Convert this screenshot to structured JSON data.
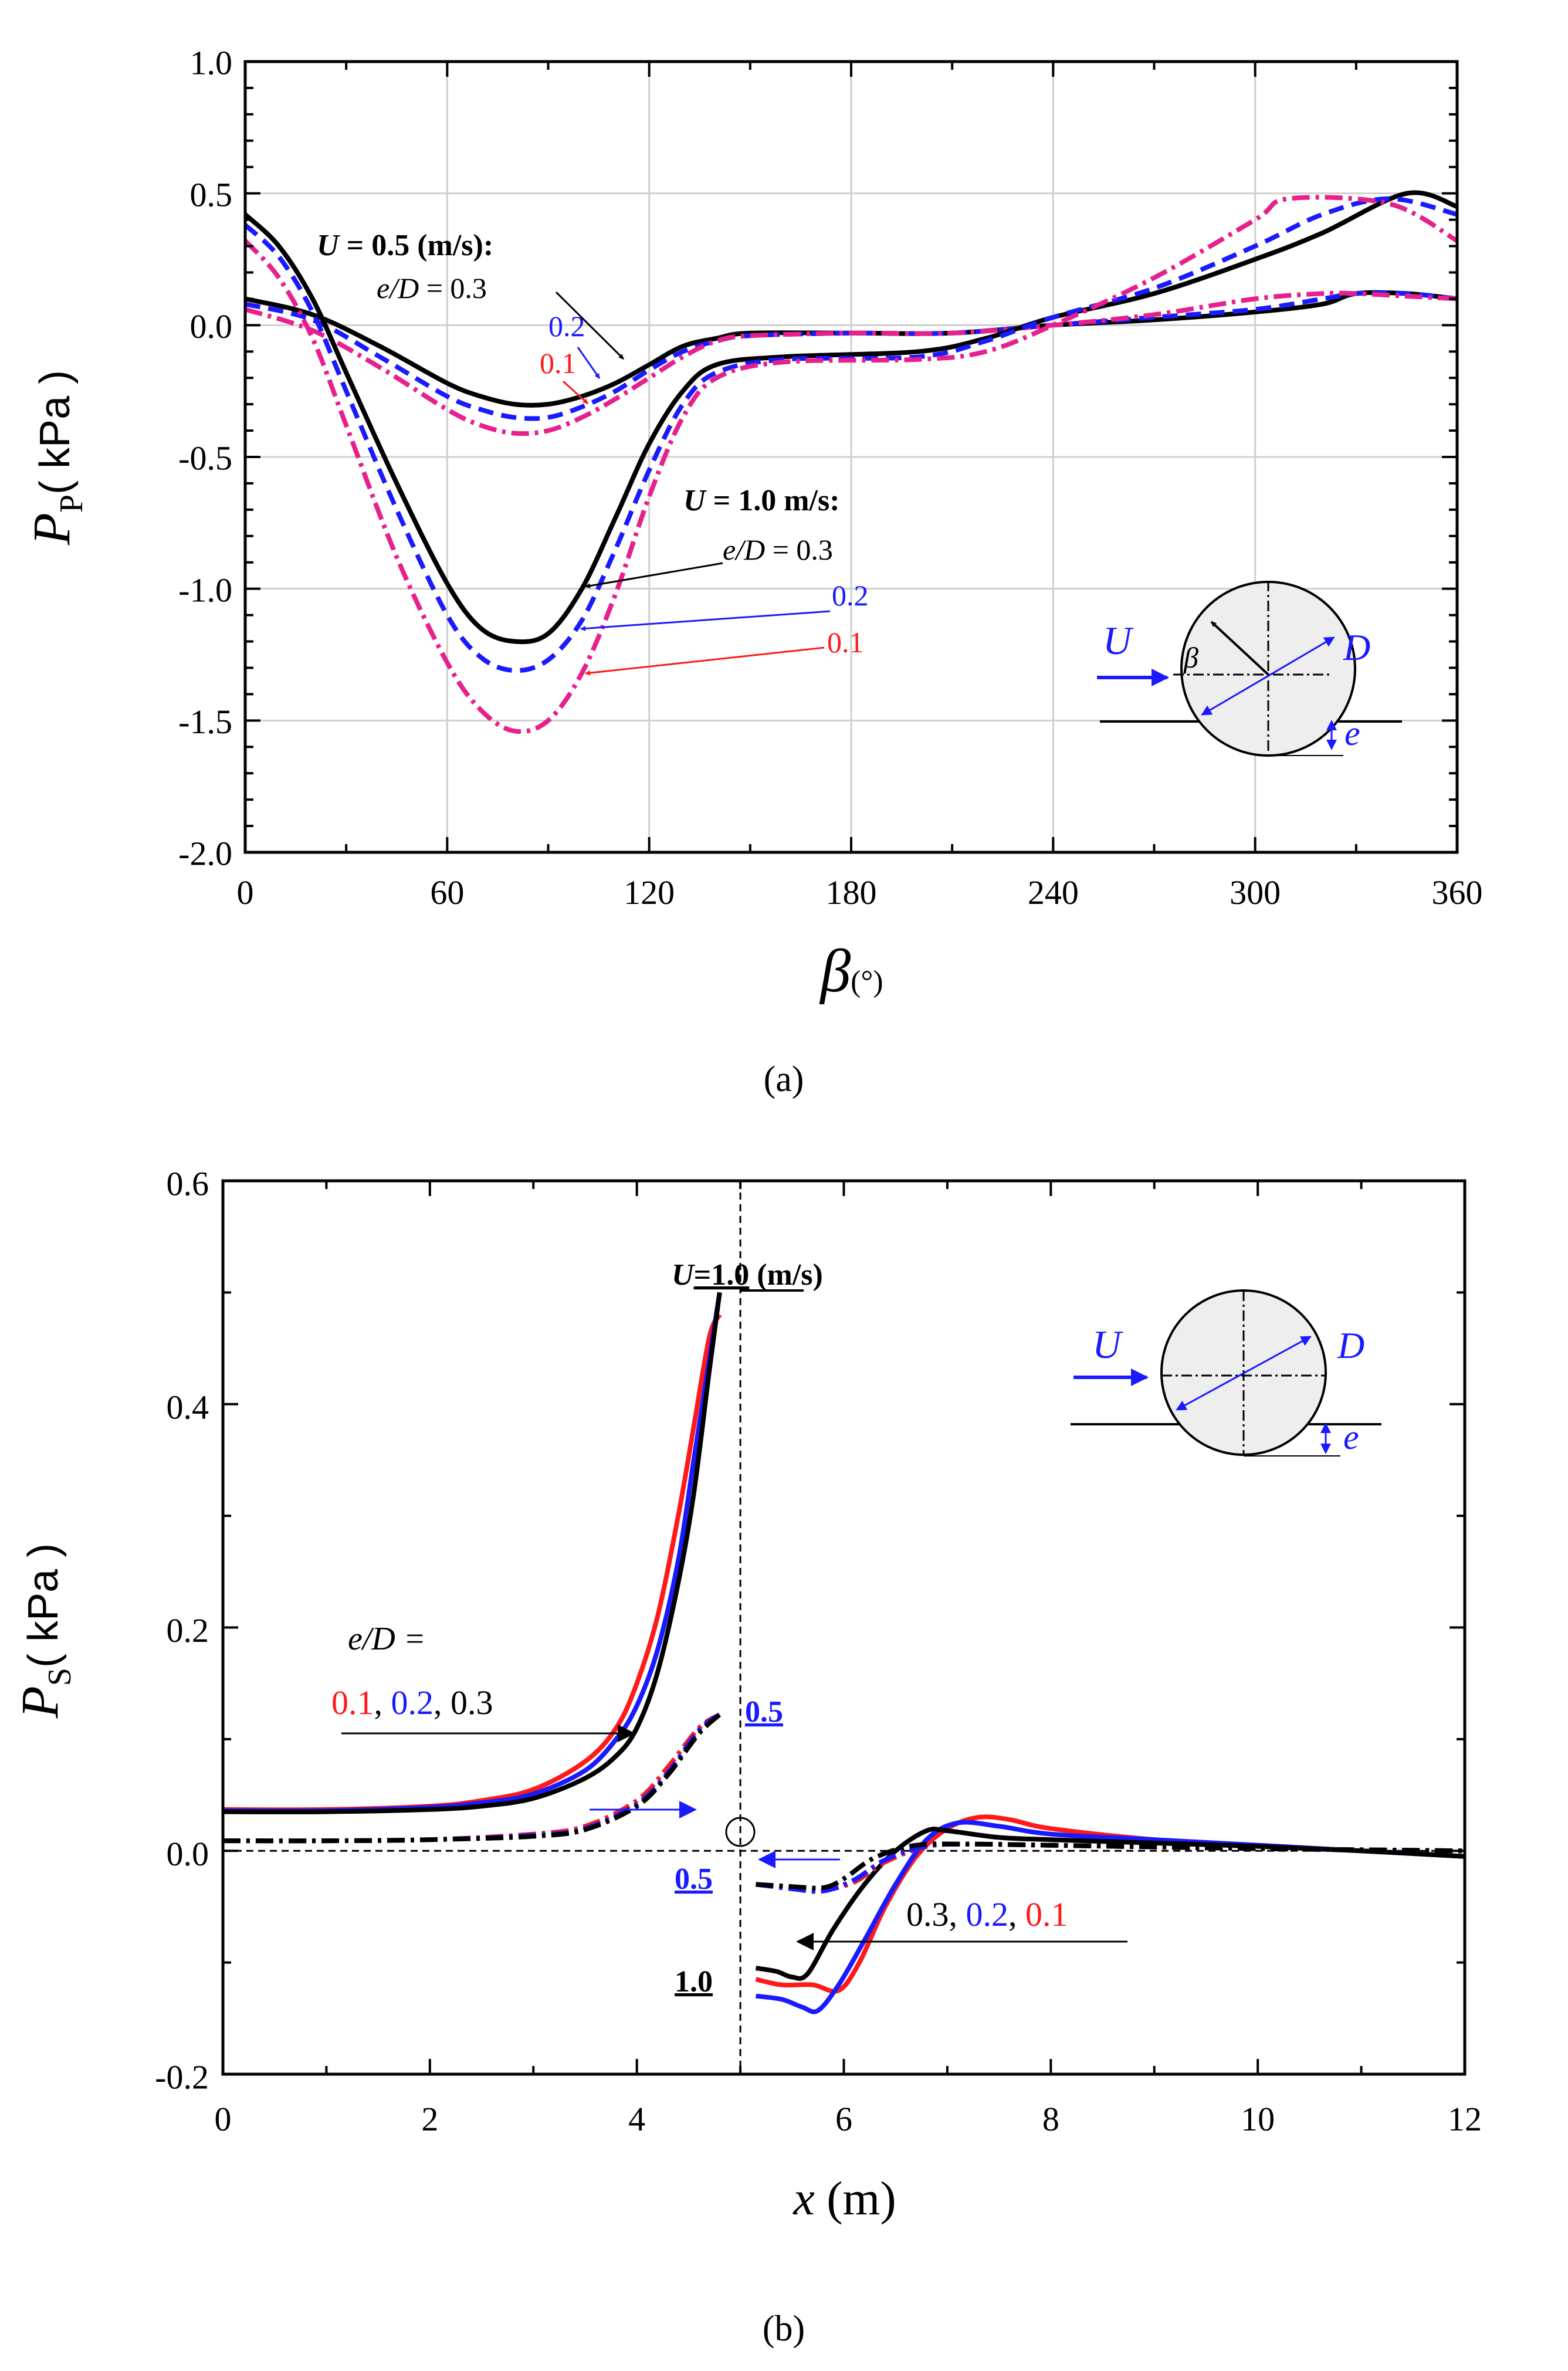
{
  "colors": {
    "black": "#000000",
    "blue": "#1a1aff",
    "red": "#ff1a1a",
    "magenta": "#e6208c",
    "grid": "#d0d0d0",
    "body": "#eeeeee"
  },
  "chart_data": [
    {
      "type": "line",
      "caption": "(a)",
      "xlabel_symbol": "β",
      "xlabel_unit": "(°)",
      "ylabel_symbol": "P",
      "ylabel_sub": "P",
      "ylabel_unit": "( kPa )",
      "xlim": [
        0,
        360
      ],
      "ylim": [
        -2.0,
        1.0
      ],
      "xticks": [
        0,
        60,
        120,
        180,
        240,
        300,
        360
      ],
      "xtick_labels": [
        "0",
        "60",
        "120",
        "180",
        "240",
        "300",
        "360"
      ],
      "yticks": [
        1.0,
        0.5,
        0.0,
        -0.5,
        -1.0,
        -1.5,
        -2.0
      ],
      "ytick_labels": [
        "1.0",
        "0.5",
        "0.0",
        "-0.5",
        "-1.0",
        "-1.5",
        "-2.0"
      ],
      "grid": true,
      "annotations": {
        "u05_title_U": "U",
        "u05_title_rest": " = 0.5 (m/s):",
        "u05_ed_var": "e/D",
        "u05_ed_val": " = 0.3",
        "u05_v02": "0.2",
        "u05_v01": "0.1",
        "u10_title_U": "U",
        "u10_title_rest": " = 1.0 m/s:",
        "u10_ed_var": "e/D",
        "u10_ed_val": " = 0.3",
        "u10_v02": "0.2",
        "u10_v01": "0.1",
        "inset_U": "U",
        "inset_beta": "β",
        "inset_D": "D",
        "inset_e": "e"
      },
      "series": [
        {
          "name": "U=0.5, e/D=0.3",
          "style": "solid",
          "color": "black",
          "x": [
            0,
            20,
            40,
            60,
            70,
            80,
            90,
            100,
            110,
            120,
            130,
            140,
            150,
            180,
            210,
            240,
            270,
            300,
            320,
            330,
            345,
            360
          ],
          "y": [
            0.1,
            0.04,
            -0.08,
            -0.22,
            -0.27,
            -0.3,
            -0.3,
            -0.27,
            -0.22,
            -0.15,
            -0.08,
            -0.05,
            -0.03,
            -0.03,
            -0.03,
            0.0,
            0.02,
            0.05,
            0.08,
            0.12,
            0.12,
            0.1
          ]
        },
        {
          "name": "U=0.5, e/D=0.2",
          "style": "dashed",
          "color": "blue",
          "x": [
            0,
            20,
            40,
            60,
            70,
            80,
            90,
            100,
            110,
            120,
            130,
            140,
            150,
            180,
            210,
            240,
            270,
            300,
            320,
            330,
            345,
            360
          ],
          "y": [
            0.08,
            0.02,
            -0.12,
            -0.27,
            -0.32,
            -0.35,
            -0.35,
            -0.31,
            -0.25,
            -0.17,
            -0.1,
            -0.06,
            -0.04,
            -0.03,
            -0.03,
            0.0,
            0.03,
            0.06,
            0.1,
            0.12,
            0.12,
            0.1
          ]
        },
        {
          "name": "U=0.5, e/D=0.1",
          "style": "dashdot",
          "color": "magenta",
          "x": [
            0,
            20,
            40,
            60,
            70,
            80,
            90,
            100,
            110,
            120,
            130,
            140,
            150,
            180,
            210,
            240,
            270,
            300,
            320,
            330,
            345,
            360
          ],
          "y": [
            0.06,
            -0.02,
            -0.16,
            -0.32,
            -0.38,
            -0.41,
            -0.4,
            -0.35,
            -0.28,
            -0.2,
            -0.12,
            -0.06,
            -0.04,
            -0.03,
            -0.03,
            0.0,
            0.04,
            0.1,
            0.12,
            0.12,
            0.11,
            0.1
          ]
        },
        {
          "name": "U=1.0, e/D=0.3",
          "style": "solid",
          "color": "black",
          "x": [
            0,
            10,
            20,
            30,
            45,
            60,
            70,
            80,
            90,
            100,
            110,
            120,
            130,
            140,
            160,
            200,
            220,
            240,
            270,
            300,
            320,
            345,
            360
          ],
          "y": [
            0.42,
            0.3,
            0.1,
            -0.18,
            -0.6,
            -0.98,
            -1.15,
            -1.2,
            -1.17,
            -1.0,
            -0.73,
            -0.45,
            -0.25,
            -0.15,
            -0.12,
            -0.1,
            -0.05,
            0.03,
            0.12,
            0.25,
            0.35,
            0.5,
            0.45
          ]
        },
        {
          "name": "U=1.0, e/D=0.2",
          "style": "dashed",
          "color": "blue",
          "x": [
            0,
            10,
            20,
            30,
            45,
            60,
            70,
            80,
            90,
            100,
            110,
            120,
            130,
            140,
            160,
            200,
            220,
            240,
            270,
            300,
            320,
            340,
            360
          ],
          "y": [
            0.38,
            0.26,
            0.05,
            -0.25,
            -0.7,
            -1.1,
            -1.26,
            -1.31,
            -1.27,
            -1.12,
            -0.85,
            -0.55,
            -0.3,
            -0.18,
            -0.13,
            -0.12,
            -0.06,
            0.03,
            0.14,
            0.3,
            0.42,
            0.48,
            0.42
          ]
        },
        {
          "name": "U=1.0, e/D=0.1",
          "style": "dashdot",
          "color": "magenta",
          "x": [
            0,
            10,
            20,
            30,
            45,
            60,
            70,
            80,
            90,
            100,
            110,
            120,
            130,
            140,
            160,
            200,
            220,
            240,
            270,
            300,
            310,
            340,
            360
          ],
          "y": [
            0.32,
            0.18,
            -0.05,
            -0.38,
            -0.88,
            -1.28,
            -1.46,
            -1.54,
            -1.5,
            -1.32,
            -1.02,
            -0.65,
            -0.35,
            -0.2,
            -0.14,
            -0.13,
            -0.1,
            0.0,
            0.18,
            0.4,
            0.48,
            0.46,
            0.32
          ]
        }
      ]
    },
    {
      "type": "line",
      "caption": "(b)",
      "xlabel_symbol": "x",
      "xlabel_unit": " (m)",
      "ylabel_symbol": "P",
      "ylabel_sub": "S",
      "ylabel_unit": "( kPa )",
      "xlim": [
        0,
        12
      ],
      "ylim": [
        -0.2,
        0.6
      ],
      "xticks": [
        0,
        2,
        4,
        6,
        8,
        10,
        12
      ],
      "xtick_labels": [
        "0",
        "2",
        "4",
        "6",
        "8",
        "10",
        "12"
      ],
      "yticks": [
        0.6,
        0.4,
        0.2,
        0.0,
        -0.2
      ],
      "ytick_labels": [
        "0.6",
        "0.4",
        "0.2",
        "0.0",
        "-0.2"
      ],
      "grid": false,
      "annotations": {
        "u10_top_U": "U",
        "u10_top_val": "=1.0",
        "u10_top_unit": " (m/s)",
        "ed_label": "e/D =",
        "ed_v1": "0.1",
        "ed_sep1": ", ",
        "ed_v2": "0.2",
        "ed_sep2": ", ",
        "ed_v3": "0.3",
        "u05_up": "0.5",
        "u05_down": "0.5",
        "u10_down": "1.0",
        "right_v3": "0.3",
        "right_sep1": ", ",
        "right_v2": "0.2",
        "right_sep2": ", ",
        "right_v1": "0.1",
        "inset_U": "U",
        "inset_D": "D",
        "inset_e": "e"
      },
      "series": [
        {
          "name": "U=1.0 up, e/D=0.1",
          "style": "solid",
          "color": "red",
          "x": [
            0,
            1,
            2,
            2.5,
            3,
            3.5,
            3.8,
            4.0,
            4.2,
            4.4,
            4.55,
            4.7,
            4.8
          ],
          "y": [
            0.037,
            0.037,
            0.04,
            0.045,
            0.055,
            0.08,
            0.11,
            0.15,
            0.21,
            0.3,
            0.38,
            0.46,
            0.48
          ]
        },
        {
          "name": "U=1.0 up, e/D=0.2",
          "style": "solid",
          "color": "blue",
          "x": [
            0,
            1,
            2,
            2.5,
            3,
            3.5,
            3.8,
            4.0,
            4.2,
            4.4,
            4.55,
            4.7,
            4.8
          ],
          "y": [
            0.036,
            0.036,
            0.039,
            0.043,
            0.051,
            0.072,
            0.1,
            0.13,
            0.18,
            0.26,
            0.35,
            0.44,
            0.5
          ]
        },
        {
          "name": "U=1.0 up, e/D=0.3",
          "style": "solid",
          "color": "black",
          "x": [
            0,
            1,
            2,
            2.5,
            3,
            3.5,
            3.8,
            4.0,
            4.2,
            4.4,
            4.55,
            4.7,
            4.8
          ],
          "y": [
            0.035,
            0.035,
            0.037,
            0.04,
            0.047,
            0.065,
            0.085,
            0.11,
            0.16,
            0.24,
            0.32,
            0.43,
            0.5
          ]
        },
        {
          "name": "U=0.5 up, e/D=0.1",
          "style": "dashdot",
          "color": "red",
          "x": [
            0,
            1,
            2,
            3,
            3.5,
            4.0,
            4.3,
            4.6,
            4.8
          ],
          "y": [
            0.009,
            0.009,
            0.01,
            0.015,
            0.022,
            0.045,
            0.075,
            0.11,
            0.122
          ]
        },
        {
          "name": "U=0.5 up, e/D=0.2",
          "style": "dashdot",
          "color": "blue",
          "x": [
            0,
            1,
            2,
            3,
            3.5,
            4.0,
            4.3,
            4.6,
            4.8
          ],
          "y": [
            0.009,
            0.009,
            0.01,
            0.014,
            0.02,
            0.042,
            0.07,
            0.108,
            0.122
          ]
        },
        {
          "name": "U=0.5 up, e/D=0.3",
          "style": "dashdot",
          "color": "black",
          "x": [
            0,
            1,
            2,
            3,
            3.5,
            4.0,
            4.3,
            4.6,
            4.8
          ],
          "y": [
            0.009,
            0.009,
            0.01,
            0.013,
            0.019,
            0.04,
            0.068,
            0.105,
            0.122
          ]
        },
        {
          "name": "U=1.0 down, e/D=0.1",
          "style": "solid",
          "color": "red",
          "x": [
            5.15,
            5.4,
            5.7,
            5.95,
            6.15,
            6.4,
            6.7,
            7.0,
            7.3,
            7.6,
            8.0,
            9.0,
            10,
            11,
            12
          ],
          "y": [
            -0.115,
            -0.12,
            -0.12,
            -0.125,
            -0.1,
            -0.05,
            -0.005,
            0.02,
            0.03,
            0.028,
            0.02,
            0.01,
            0.005,
            0.0,
            -0.005
          ]
        },
        {
          "name": "U=1.0 down, e/D=0.2",
          "style": "solid",
          "color": "blue",
          "x": [
            5.15,
            5.4,
            5.6,
            5.75,
            5.95,
            6.2,
            6.5,
            6.8,
            7.1,
            7.5,
            8.0,
            9.0,
            10,
            11,
            12
          ],
          "y": [
            -0.13,
            -0.133,
            -0.14,
            -0.143,
            -0.12,
            -0.08,
            -0.03,
            0.01,
            0.025,
            0.022,
            0.015,
            0.01,
            0.005,
            0.0,
            -0.005
          ]
        },
        {
          "name": "U=1.0 down, e/D=0.3",
          "style": "solid",
          "color": "black",
          "x": [
            5.15,
            5.35,
            5.5,
            5.65,
            5.9,
            6.2,
            6.5,
            6.8,
            7.0,
            7.5,
            8.0,
            9.0,
            10,
            11,
            12
          ],
          "y": [
            -0.105,
            -0.108,
            -0.113,
            -0.11,
            -0.07,
            -0.03,
            0.0,
            0.018,
            0.018,
            0.012,
            0.01,
            0.007,
            0.004,
            0.0,
            -0.005
          ]
        },
        {
          "name": "U=0.5 down, e/D=0.1",
          "style": "dashdot",
          "color": "red",
          "x": [
            5.15,
            5.5,
            5.8,
            6.1,
            6.4,
            6.8,
            7.2,
            8,
            10,
            12
          ],
          "y": [
            -0.03,
            -0.033,
            -0.035,
            -0.028,
            -0.01,
            0.004,
            0.006,
            0.005,
            0.002,
            0.0
          ]
        },
        {
          "name": "U=0.5 down, e/D=0.2",
          "style": "dashdot",
          "color": "blue",
          "x": [
            5.15,
            5.5,
            5.8,
            6.1,
            6.4,
            6.8,
            7.2,
            8,
            10,
            12
          ],
          "y": [
            -0.03,
            -0.034,
            -0.036,
            -0.026,
            -0.008,
            0.004,
            0.006,
            0.005,
            0.002,
            0.0
          ]
        },
        {
          "name": "U=0.5 down, e/D=0.3",
          "style": "dashdot",
          "color": "black",
          "x": [
            5.15,
            5.5,
            5.8,
            6.0,
            6.3,
            6.7,
            7.2,
            8,
            10,
            12
          ],
          "y": [
            -0.03,
            -0.032,
            -0.033,
            -0.025,
            -0.006,
            0.005,
            0.006,
            0.005,
            0.002,
            0.0
          ]
        }
      ]
    }
  ]
}
